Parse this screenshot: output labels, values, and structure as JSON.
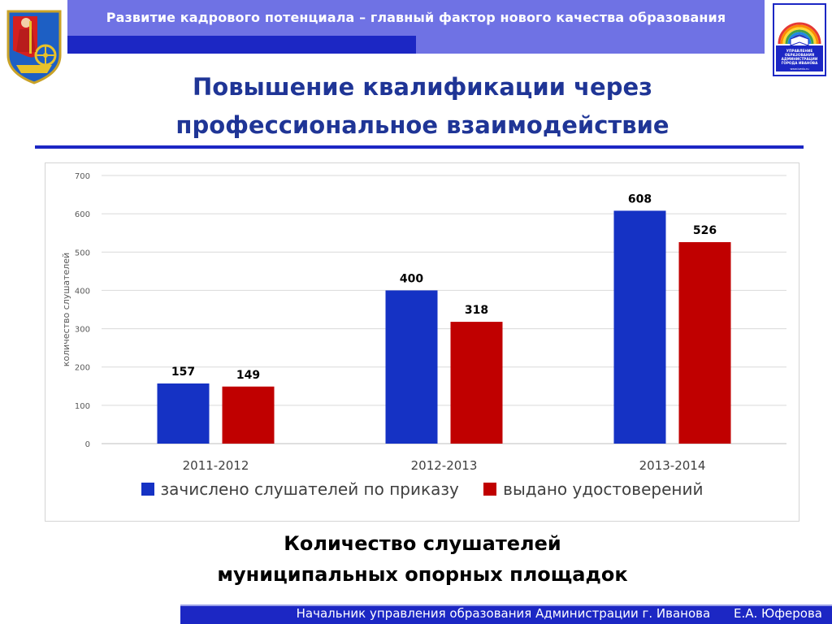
{
  "header": {
    "title": "Развитие кадрового потенциала – главный фактор нового качества образования",
    "colors": {
      "bar_light": "#6f72e4",
      "bar_dark": "#1c27c4"
    }
  },
  "logos": {
    "left": "city-coat-of-arms",
    "right": "education-department-logo",
    "right_text": "УПРАВЛЕНИЕ ОБРАЗОВАНИЯ АДМИНИСТРАЦИИ ГОРОДА ИВАНОВА",
    "right_url": "www.ivedu.ru"
  },
  "main_title": {
    "line1": "Повышение квалификации через",
    "line2": "профессиональное взаимодействие"
  },
  "chart_data": {
    "type": "bar",
    "title": "",
    "xlabel": "",
    "ylabel": "количество слушателей",
    "categories": [
      "2011-2012",
      "2012-2013",
      "2013-2014"
    ],
    "series": [
      {
        "name": "зачислено слушателей по приказу",
        "values": [
          157,
          400,
          608
        ],
        "color": "#1532c4"
      },
      {
        "name": "выдано удостоверений",
        "values": [
          149,
          318,
          526
        ],
        "color": "#c00000"
      }
    ],
    "ylim": [
      0,
      700
    ],
    "yticks": [
      0,
      100,
      200,
      300,
      400,
      500,
      600,
      700
    ],
    "grid": true,
    "legend": "bottom"
  },
  "caption": {
    "line1": "Количество слушателей",
    "line2": "муниципальных опорных площадок"
  },
  "footer": {
    "position": "Начальник управления образования Администрации  г. Иванова",
    "name": "Е.А. Юферова"
  }
}
